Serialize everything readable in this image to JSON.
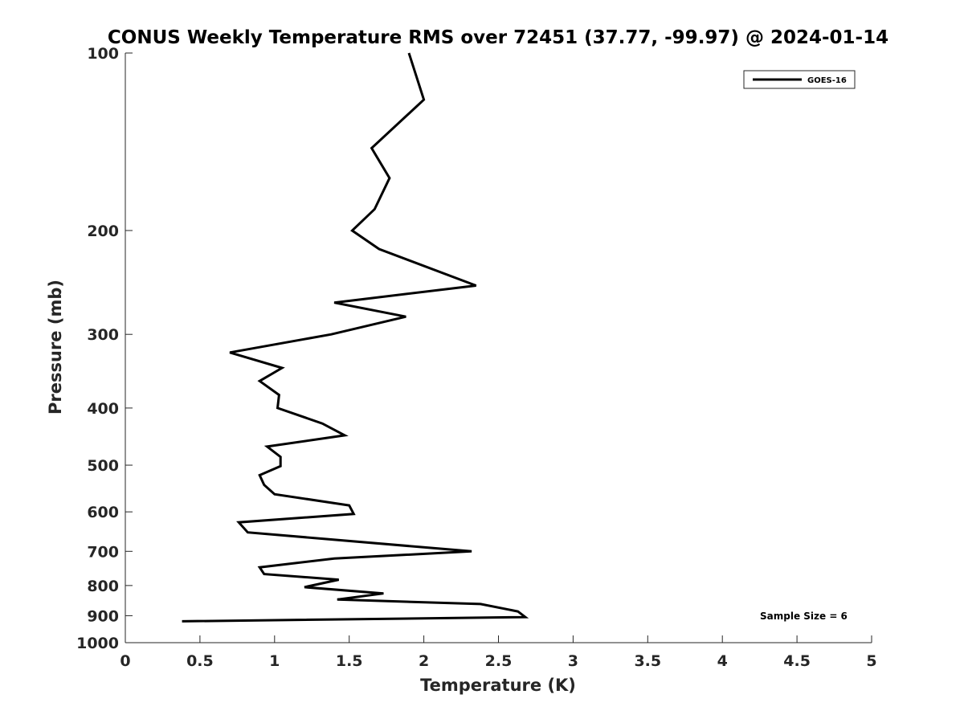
{
  "chart_data": {
    "type": "line",
    "title": "CONUS Weekly Temperature RMS over 72451 (37.77, -99.97) @ 2024-01-14",
    "xlabel": "Temperature (K)",
    "ylabel": "Pressure (mb)",
    "xlim": [
      0,
      5
    ],
    "ylim": [
      1000,
      100
    ],
    "y_scale": "log",
    "x_ticks": [
      0,
      0.5,
      1,
      1.5,
      2,
      2.5,
      3,
      3.5,
      4,
      4.5,
      5
    ],
    "x_tick_labels": [
      "0",
      "0.5",
      "1",
      "1.5",
      "2",
      "2.5",
      "3",
      "3.5",
      "4",
      "4.5",
      "5"
    ],
    "y_ticks": [
      100,
      200,
      300,
      400,
      500,
      600,
      700,
      800,
      900,
      1000
    ],
    "y_tick_labels": [
      "100",
      "200",
      "300",
      "400",
      "500",
      "600",
      "700",
      "800",
      "900",
      "1000"
    ],
    "grid": false,
    "legend_position": "top-right",
    "annotation": "Sample Size = 6",
    "series": [
      {
        "name": "GOES-16",
        "color": "#000000",
        "points": [
          {
            "x": 1.9,
            "y": 100
          },
          {
            "x": 2.0,
            "y": 120
          },
          {
            "x": 1.65,
            "y": 145
          },
          {
            "x": 1.77,
            "y": 163
          },
          {
            "x": 1.67,
            "y": 184
          },
          {
            "x": 1.52,
            "y": 200
          },
          {
            "x": 1.7,
            "y": 215
          },
          {
            "x": 2.35,
            "y": 248
          },
          {
            "x": 1.4,
            "y": 265
          },
          {
            "x": 1.88,
            "y": 280
          },
          {
            "x": 1.38,
            "y": 300
          },
          {
            "x": 0.7,
            "y": 322
          },
          {
            "x": 1.05,
            "y": 342
          },
          {
            "x": 0.9,
            "y": 360
          },
          {
            "x": 1.03,
            "y": 380
          },
          {
            "x": 1.02,
            "y": 400
          },
          {
            "x": 1.32,
            "y": 425
          },
          {
            "x": 1.47,
            "y": 445
          },
          {
            "x": 0.95,
            "y": 465
          },
          {
            "x": 1.04,
            "y": 484
          },
          {
            "x": 1.04,
            "y": 502
          },
          {
            "x": 0.9,
            "y": 520
          },
          {
            "x": 0.93,
            "y": 540
          },
          {
            "x": 1.0,
            "y": 560
          },
          {
            "x": 1.5,
            "y": 585
          },
          {
            "x": 1.53,
            "y": 605
          },
          {
            "x": 0.76,
            "y": 625
          },
          {
            "x": 0.82,
            "y": 650
          },
          {
            "x": 2.32,
            "y": 700
          },
          {
            "x": 1.4,
            "y": 720
          },
          {
            "x": 0.9,
            "y": 745
          },
          {
            "x": 0.93,
            "y": 765
          },
          {
            "x": 1.43,
            "y": 782
          },
          {
            "x": 1.2,
            "y": 805
          },
          {
            "x": 1.73,
            "y": 825
          },
          {
            "x": 1.42,
            "y": 845
          },
          {
            "x": 2.38,
            "y": 860
          },
          {
            "x": 2.63,
            "y": 885
          },
          {
            "x": 2.68,
            "y": 905
          },
          {
            "x": 0.38,
            "y": 920
          }
        ]
      }
    ]
  }
}
